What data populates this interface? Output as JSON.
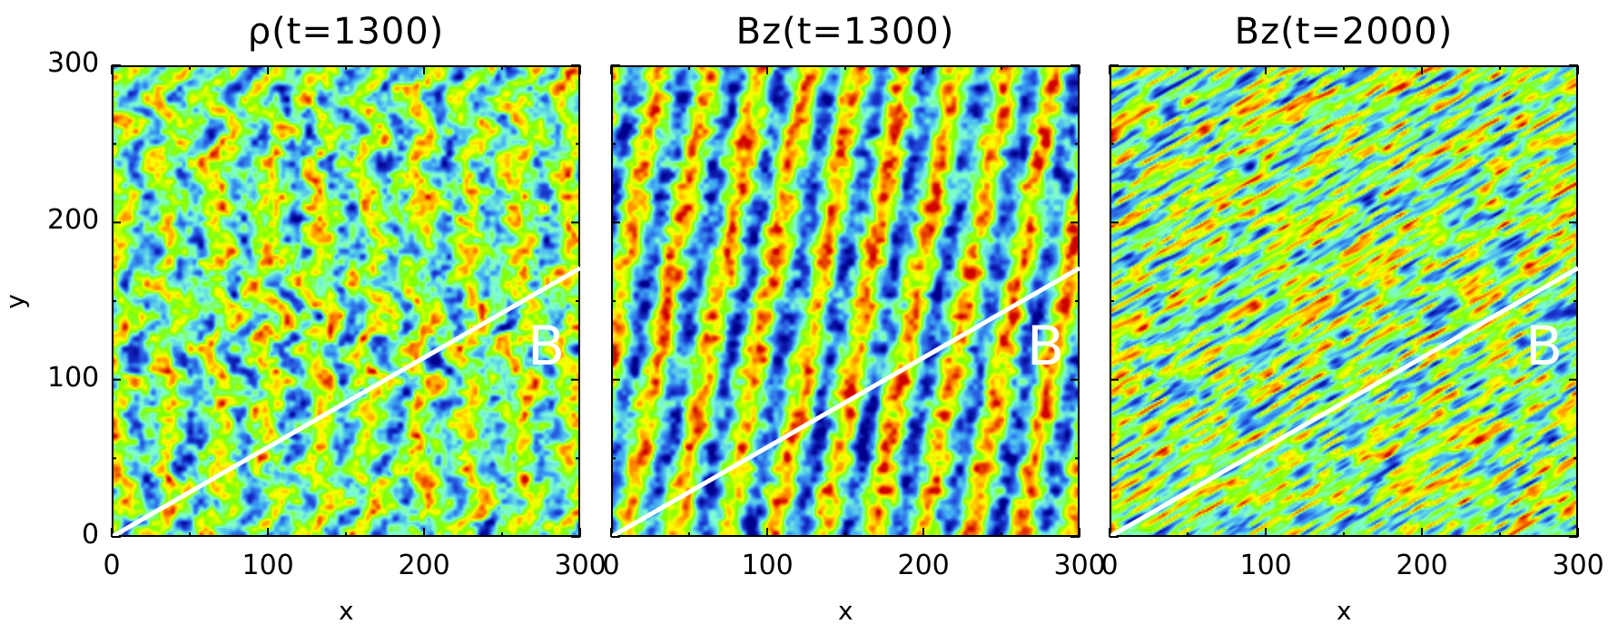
{
  "chart_data": [
    {
      "type": "heatmap",
      "title": "ρ(t=1300)",
      "xlabel": "x",
      "ylabel": "y",
      "xlim": [
        0,
        300
      ],
      "ylim": [
        0,
        300
      ],
      "x_ticks": [
        "0",
        "100",
        "200",
        "300"
      ],
      "y_ticks": [
        "0",
        "100",
        "200",
        "300"
      ],
      "annotation": "B",
      "field_line_slope": 0.57,
      "colormap": [
        "#00008b",
        "#1f3fd6",
        "#3fa9f5",
        "#7fffd4",
        "#7fff00",
        "#ffff00",
        "#ff8c00",
        "#d00000"
      ],
      "pattern": "chevron"
    },
    {
      "type": "heatmap",
      "title": "Bz(t=1300)",
      "xlabel": "x",
      "ylabel": "",
      "xlim": [
        0,
        300
      ],
      "ylim": [
        0,
        300
      ],
      "x_ticks": [
        "0",
        "100",
        "200",
        "300"
      ],
      "y_ticks": [],
      "annotation": "B",
      "field_line_slope": 0.57,
      "colormap": [
        "#00008b",
        "#1f3fd6",
        "#3fa9f5",
        "#7fffd4",
        "#7fff00",
        "#ffff00",
        "#ff8c00",
        "#d00000"
      ],
      "pattern": "vertical-stripes"
    },
    {
      "type": "heatmap",
      "title": "Bz(t=2000)",
      "xlabel": "x",
      "ylabel": "",
      "xlim": [
        0,
        300
      ],
      "ylim": [
        0,
        300
      ],
      "x_ticks": [
        "0",
        "100",
        "200",
        "300"
      ],
      "y_ticks": [],
      "annotation": "B",
      "field_line_slope": 0.57,
      "colormap": [
        "#00008b",
        "#1f3fd6",
        "#3fa9f5",
        "#7fffd4",
        "#7fff00",
        "#ffff00",
        "#ff8c00",
        "#d00000"
      ],
      "pattern": "oblique-streaks"
    }
  ]
}
